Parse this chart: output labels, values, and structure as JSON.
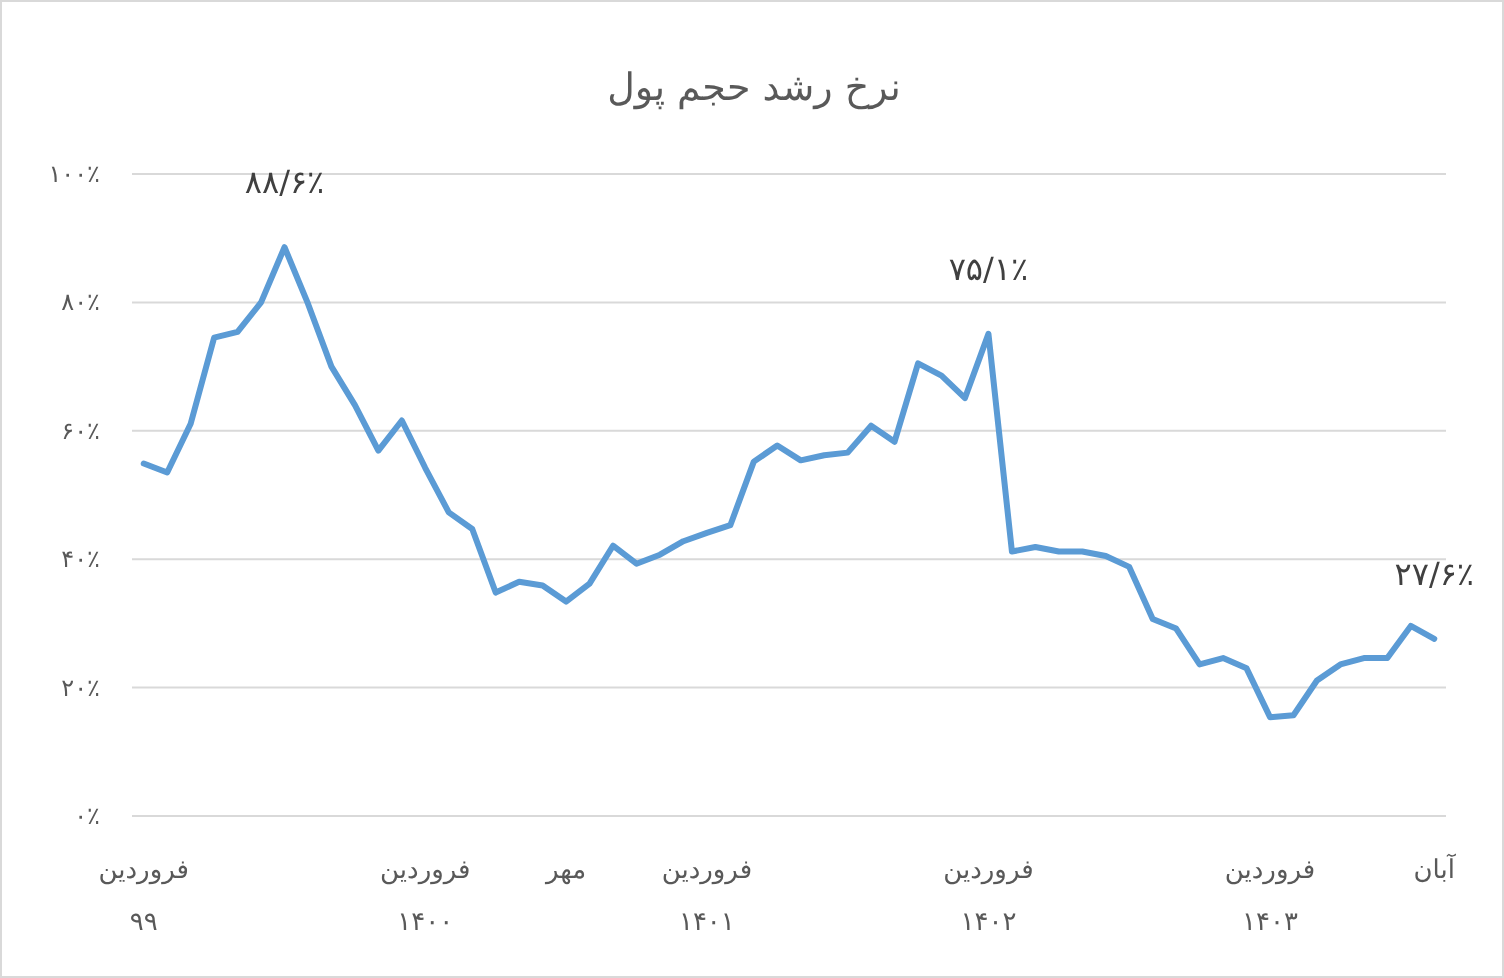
{
  "chart_data": {
    "type": "line",
    "title": "نرخ رشد حجم پول",
    "categories": [
      "فروردین\n۹۹",
      null,
      null,
      null,
      null,
      null,
      null,
      null,
      null,
      null,
      null,
      null,
      "فروردین\n۱۴۰۰",
      null,
      null,
      null,
      null,
      null,
      "مهر",
      null,
      null,
      null,
      null,
      null,
      "فروردین\n۱۴۰۱",
      null,
      null,
      null,
      null,
      null,
      null,
      null,
      null,
      null,
      null,
      null,
      "فروردین\n۱۴۰۲",
      null,
      null,
      null,
      null,
      null,
      null,
      null,
      null,
      null,
      null,
      null,
      "فروردین\n۱۴۰۳",
      null,
      null,
      null,
      null,
      null,
      null,
      "آبان"
    ],
    "values": [
      54.9,
      53.5,
      61.1,
      74.5,
      75.4,
      80.0,
      88.6,
      79.8,
      70.0,
      64.0,
      56.9,
      61.6,
      54.2,
      47.3,
      44.7,
      34.8,
      36.5,
      35.9,
      33.4,
      36.2,
      42.1,
      39.3,
      40.7,
      42.8,
      44.1,
      45.3,
      55.2,
      57.7,
      55.4,
      56.2,
      56.6,
      60.8,
      58.3,
      70.5,
      68.6,
      65.1,
      75.1,
      41.2,
      41.9,
      41.2,
      41.2,
      40.5,
      38.8,
      30.7,
      29.2,
      23.6,
      24.6,
      23.0,
      15.4,
      15.7,
      21.1,
      23.6,
      24.6,
      24.6,
      29.6,
      27.6
    ],
    "value_labels": [
      null,
      null,
      null,
      null,
      null,
      null,
      "۸۸/۶٪",
      null,
      null,
      null,
      null,
      null,
      null,
      null,
      null,
      null,
      null,
      null,
      null,
      null,
      null,
      null,
      null,
      null,
      null,
      null,
      null,
      null,
      null,
      null,
      null,
      null,
      null,
      null,
      null,
      null,
      "۷۵/۱٪",
      null,
      null,
      null,
      null,
      null,
      null,
      null,
      null,
      null,
      null,
      null,
      null,
      null,
      null,
      null,
      null,
      null,
      null,
      "۲۷/۶٪"
    ],
    "color": "#5b9bd5",
    "ylim": [
      0,
      100
    ],
    "yticks": [
      {
        "value": 0,
        "label": "۰٪"
      },
      {
        "value": 20,
        "label": "۲۰٪"
      },
      {
        "value": 40,
        "label": "۴۰٪"
      },
      {
        "value": 60,
        "label": "۶۰٪"
      },
      {
        "value": 80,
        "label": "۸۰٪"
      },
      {
        "value": 100,
        "label": "۱۰۰٪"
      }
    ],
    "grid": "y"
  }
}
